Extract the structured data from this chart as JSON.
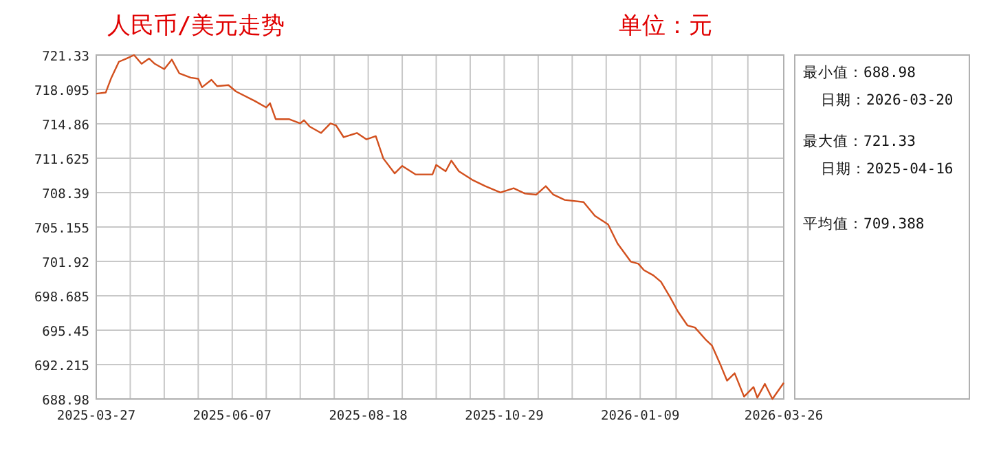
{
  "chart_data": [
    {
      "type": "line",
      "title": "人民币/美元走势",
      "subtitle": "单位：元",
      "x": [
        "2025-03-27",
        "2025-04-01",
        "2025-04-04",
        "2025-04-08",
        "2025-04-12",
        "2025-04-16",
        "2025-04-20",
        "2025-04-24",
        "2025-04-27",
        "2025-05-02",
        "2025-05-06",
        "2025-05-10",
        "2025-05-16",
        "2025-05-20",
        "2025-05-22",
        "2025-05-27",
        "2025-05-30",
        "2025-06-05",
        "2025-06-09",
        "2025-06-19",
        "2025-06-25",
        "2025-06-27",
        "2025-06-30",
        "2025-07-07",
        "2025-07-13",
        "2025-07-15",
        "2025-07-18",
        "2025-07-24",
        "2025-07-29",
        "2025-08-01",
        "2025-08-05",
        "2025-08-12",
        "2025-08-17",
        "2025-08-22",
        "2025-08-26",
        "2025-09-01",
        "2025-09-05",
        "2025-09-12",
        "2025-09-21",
        "2025-09-23",
        "2025-09-28",
        "2025-10-01",
        "2025-10-05",
        "2025-10-12",
        "2025-10-19",
        "2025-10-27",
        "2025-11-03",
        "2025-11-09",
        "2025-11-15",
        "2025-11-20",
        "2025-11-24",
        "2025-11-30",
        "2025-12-10",
        "2025-12-16",
        "2025-12-23",
        "2025-12-28",
        "2026-01-04",
        "2026-01-08",
        "2026-01-11",
        "2026-01-16",
        "2026-01-20",
        "2026-01-25",
        "2026-01-29",
        "2026-02-03",
        "2026-02-07",
        "2026-02-13",
        "2026-02-16",
        "2026-02-20",
        "2026-02-24",
        "2026-02-28",
        "2026-03-05",
        "2026-03-10",
        "2026-03-12",
        "2026-03-16",
        "2026-03-20",
        "2026-03-26"
      ],
      "series": [
        {
          "color": "#d2501e",
          "values": [
            717.7,
            717.8,
            719.2,
            720.7,
            721.0,
            721.33,
            720.5,
            721.0,
            720.5,
            720.0,
            720.9,
            719.6,
            719.2,
            719.1,
            718.3,
            719.0,
            718.4,
            718.5,
            717.9,
            717.0,
            716.4,
            716.8,
            715.3,
            715.3,
            714.9,
            715.2,
            714.6,
            714.0,
            714.9,
            714.7,
            713.6,
            714.0,
            713.4,
            713.7,
            711.6,
            710.2,
            710.9,
            710.1,
            710.1,
            711.0,
            710.4,
            711.4,
            710.4,
            709.6,
            709.0,
            708.4,
            708.8,
            708.3,
            708.2,
            709.0,
            708.2,
            707.7,
            707.5,
            706.2,
            705.4,
            703.6,
            701.9,
            701.7,
            701.1,
            700.6,
            700.0,
            698.5,
            697.2,
            695.9,
            695.7,
            694.5,
            694.0,
            692.4,
            690.7,
            691.4,
            689.2,
            690.1,
            689.1,
            690.4,
            688.98,
            690.5
          ]
        }
      ],
      "xlim": [
        "2025-03-27",
        "2026-03-26"
      ],
      "xticks": [
        {
          "value": "2025-03-27",
          "label": "2025-03-27"
        },
        {
          "value": "2025-04-14",
          "label": null
        },
        {
          "value": "2025-05-02",
          "label": null
        },
        {
          "value": "2025-05-20",
          "label": null
        },
        {
          "value": "2025-06-07",
          "label": "2025-06-07"
        },
        {
          "value": "2025-06-25",
          "label": null
        },
        {
          "value": "2025-07-13",
          "label": null
        },
        {
          "value": "2025-07-31",
          "label": null
        },
        {
          "value": "2025-08-18",
          "label": "2025-08-18"
        },
        {
          "value": "2025-09-05",
          "label": null
        },
        {
          "value": "2025-09-23",
          "label": null
        },
        {
          "value": "2025-10-11",
          "label": null
        },
        {
          "value": "2025-10-29",
          "label": "2025-10-29"
        },
        {
          "value": "2025-11-16",
          "label": null
        },
        {
          "value": "2025-12-04",
          "label": null
        },
        {
          "value": "2025-12-22",
          "label": null
        },
        {
          "value": "2026-01-09",
          "label": "2026-01-09"
        },
        {
          "value": "2026-01-28",
          "label": null
        },
        {
          "value": "2026-02-16",
          "label": null
        },
        {
          "value": "2026-03-07",
          "label": null
        },
        {
          "value": "2026-03-26",
          "label": "2026-03-26"
        }
      ],
      "ylim": [
        688.98,
        721.33
      ],
      "yticks": [
        688.98,
        692.215,
        695.45,
        698.685,
        701.92,
        705.155,
        708.39,
        711.625,
        714.86,
        718.095,
        721.33
      ],
      "grid": true,
      "marker": "none",
      "line_style": "solid"
    },
    {
      "type": "other",
      "annotations": [
        "最小值：688.98",
        "日期：2026-03-20",
        "最大值：721.33",
        "日期：2025-04-16",
        "平均值：709.388"
      ]
    }
  ]
}
